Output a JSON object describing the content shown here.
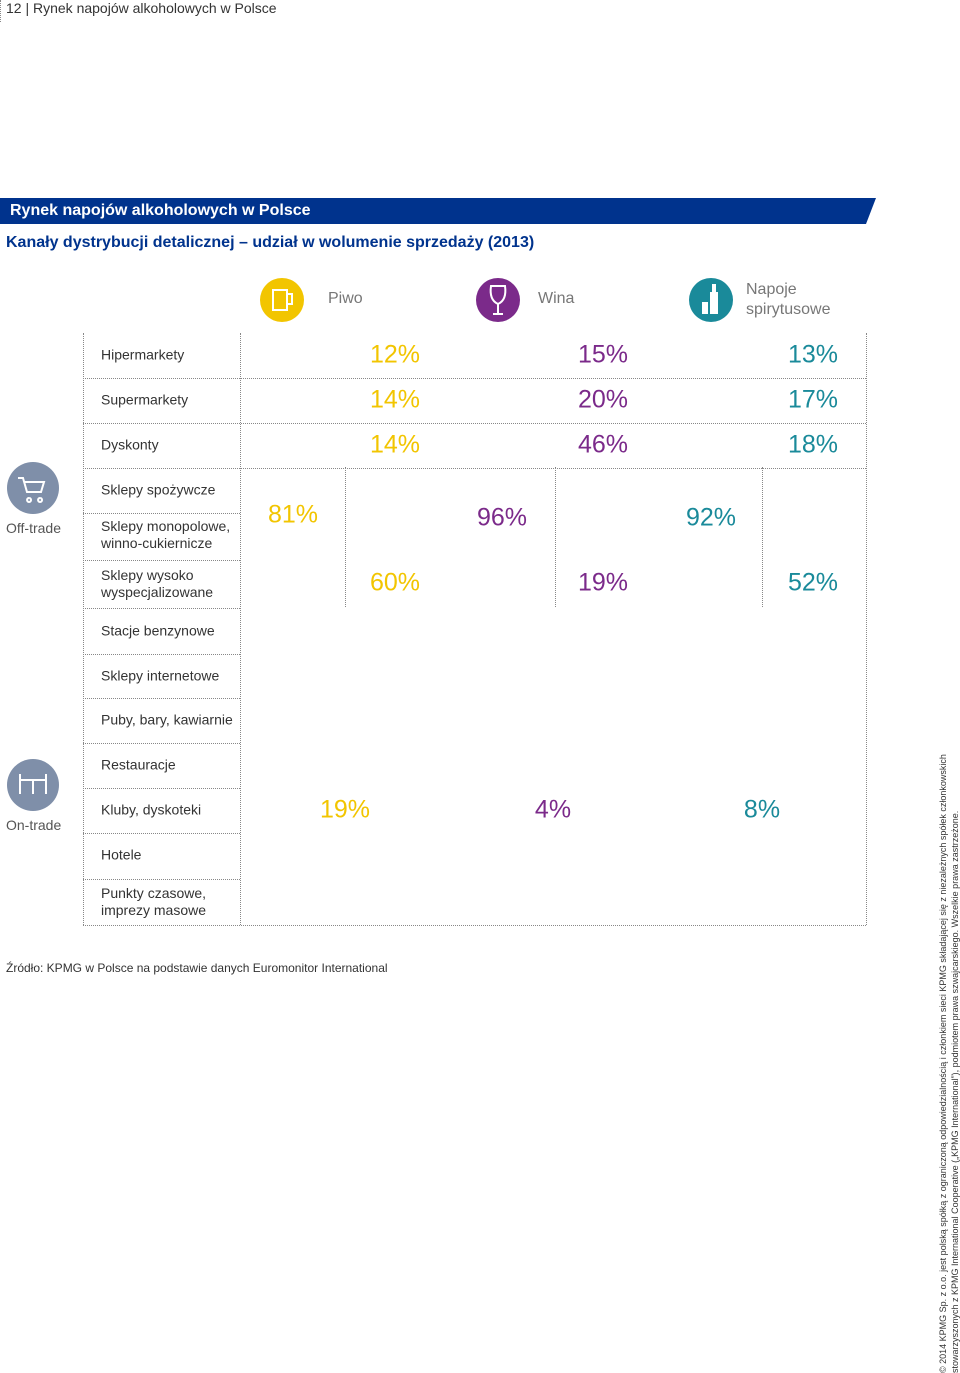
{
  "header": {
    "page": "12",
    "title": "Rynek napojów alkoholowych w Polsce"
  },
  "banner": "Rynek napojów alkoholowych w Polsce",
  "subtitle": "Kanały dystrybucji detalicznej – udział w wolumenie sprzedaży (2013)",
  "columns": [
    "Piwo",
    "Wina",
    "Napoje\nspirytusowe"
  ],
  "groups": [
    "Off-trade",
    "On-trade"
  ],
  "rows": [
    "Hipermarkety",
    "Supermarkety",
    "Dyskonty",
    "Sklepy spożywcze",
    "Sklepy monopolowe,\nwinno-cukiernicze",
    "Sklepy wysoko\nwyspecjalizowane",
    "Stacje benzynowe",
    "Sklepy internetowe",
    "Puby, bary, kawiarnie",
    "Restauracje",
    "Kluby, dyskoteki",
    "Hotele",
    "Punkty czasowe,\nimprezy masowe"
  ],
  "cells": [
    "12%",
    "15%",
    "13%",
    "14%",
    "20%",
    "17%",
    "14%",
    "46%",
    "18%",
    "81%",
    "96%",
    "92%",
    "60%",
    "19%",
    "52%",
    "19%",
    "4%",
    "8%"
  ],
  "source": "Źródło: KPMG w Polsce na podstawie danych Euromonitor International",
  "copyright": [
    "© 2014 KPMG Sp. z o.o. jest polską spółką z ograniczoną odpowiedzialnością i członkiem sieci KPMG składającej się z niezależnych spółek członkowskich",
    "stowarzyszonych z KPMG International Cooperative („KPMG International”), podmiotem prawa szwajcarskiego. Wszelkie prawa zastrzeżone."
  ]
}
